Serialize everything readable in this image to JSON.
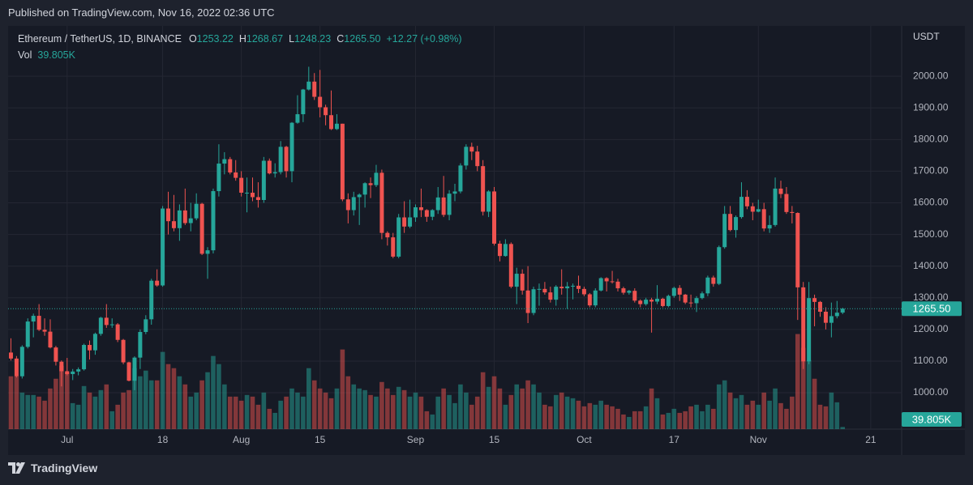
{
  "published": "Published on TradingView.com, Nov 16, 2022 02:36 UTC",
  "brand": "TradingView",
  "chart_data": {
    "type": "candlestick",
    "symbol": "Ethereum / TetherUS, 1D, BINANCE",
    "legend_values": [
      {
        "label": "O",
        "value": "1253.22"
      },
      {
        "label": "H",
        "value": "1268.67"
      },
      {
        "label": "L",
        "value": "1248.23"
      },
      {
        "label": "C",
        "value": "1265.50"
      }
    ],
    "change": "+12.27 (+0.98%)",
    "volume_title": "Vol",
    "volume_label": "39.805K",
    "axis_unit": "USDT",
    "last_price_label": "1265.50",
    "up_color": "#26a69a",
    "down_color": "#ef5350",
    "grid": true,
    "ylim": [
      885,
      2159
    ],
    "yticks": [
      {
        "value": 1000,
        "label": "1000.00"
      },
      {
        "value": 1100,
        "label": "1100.00"
      },
      {
        "value": 1200,
        "label": "1200.00"
      },
      {
        "value": 1300,
        "label": "1300.00"
      },
      {
        "value": 1400,
        "label": "1400.00"
      },
      {
        "value": 1500,
        "label": "1500.00"
      },
      {
        "value": 1600,
        "label": "1600.00"
      },
      {
        "value": 1700,
        "label": "1700.00"
      },
      {
        "value": 1800,
        "label": "1800.00"
      },
      {
        "value": 1900,
        "label": "1900.00"
      },
      {
        "value": 2000,
        "label": "2000.00"
      }
    ],
    "xlim": [
      -0.5,
      158.5
    ],
    "xticks": [
      {
        "value": 10,
        "label": "Jul"
      },
      {
        "value": 27,
        "label": "18"
      },
      {
        "value": 41,
        "label": "Aug"
      },
      {
        "value": 55,
        "label": "15"
      },
      {
        "value": 72,
        "label": "Sep"
      },
      {
        "value": 86,
        "label": "15"
      },
      {
        "value": 102,
        "label": "Oct"
      },
      {
        "value": 118,
        "label": "17"
      },
      {
        "value": 133,
        "label": "Nov"
      },
      {
        "value": 153,
        "label": "21"
      }
    ],
    "volume_lim": [
      0,
      7440000
    ],
    "candles": {
      "open": [
        1127,
        1108,
        1052,
        1145,
        1225,
        1243,
        1199,
        1193,
        1143,
        1098,
        1068,
        1059,
        1067,
        1074,
        1151,
        1134,
        1186,
        1237,
        1214,
        1216,
        1167,
        1096,
        1038,
        1111,
        1192,
        1232,
        1354,
        1339,
        1582,
        1542,
        1520,
        1576,
        1536,
        1551,
        1597,
        1439,
        1450,
        1637,
        1724,
        1738,
        1696,
        1679,
        1632,
        1632,
        1618,
        1609,
        1733,
        1693,
        1697,
        1777,
        1700,
        1853,
        1880,
        1958,
        1983,
        1935,
        1902,
        1877,
        1833,
        1850,
        1611,
        1577,
        1618,
        1626,
        1662,
        1656,
        1695,
        1505,
        1491,
        1430,
        1554,
        1525,
        1554,
        1586,
        1577,
        1556,
        1577,
        1617,
        1562,
        1629,
        1636,
        1718,
        1777,
        1762,
        1716,
        1572,
        1636,
        1471,
        1432,
        1470,
        1335,
        1376,
        1323,
        1252,
        1327,
        1328,
        1317,
        1294,
        1335,
        1330,
        1336,
        1338,
        1328,
        1311,
        1276,
        1323,
        1362,
        1352,
        1351,
        1330,
        1316,
        1322,
        1291,
        1280,
        1294,
        1288,
        1297,
        1274,
        1306,
        1331,
        1310,
        1285,
        1283,
        1299,
        1314,
        1364,
        1344,
        1460,
        1565,
        1514,
        1555,
        1619,
        1589,
        1572,
        1580,
        1519,
        1530,
        1645,
        1628,
        1571,
        1568,
        1333,
        1099,
        1299,
        1287,
        1256,
        1221,
        1242,
        1253.22
      ],
      "high": [
        1172,
        1116,
        1150,
        1235,
        1250,
        1280,
        1235,
        1232,
        1148,
        1102,
        1110,
        1075,
        1080,
        1155,
        1165,
        1190,
        1240,
        1280,
        1235,
        1220,
        1170,
        1098,
        1115,
        1200,
        1245,
        1360,
        1390,
        1590,
        1635,
        1625,
        1595,
        1645,
        1600,
        1630,
        1600,
        1460,
        1645,
        1785,
        1760,
        1745,
        1735,
        1700,
        1680,
        1680,
        1665,
        1745,
        1740,
        1725,
        1795,
        1780,
        1855,
        1940,
        1960,
        2030,
        2010,
        2020,
        1910,
        1955,
        1880,
        1850,
        1630,
        1635,
        1630,
        1665,
        1680,
        1720,
        1705,
        1510,
        1505,
        1565,
        1605,
        1610,
        1595,
        1645,
        1580,
        1580,
        1650,
        1685,
        1640,
        1660,
        1725,
        1785,
        1790,
        1780,
        1735,
        1640,
        1650,
        1480,
        1485,
        1475,
        1395,
        1390,
        1400,
        1335,
        1345,
        1350,
        1335,
        1340,
        1390,
        1350,
        1345,
        1370,
        1335,
        1315,
        1330,
        1365,
        1365,
        1385,
        1360,
        1335,
        1325,
        1330,
        1295,
        1300,
        1300,
        1340,
        1300,
        1310,
        1335,
        1340,
        1312,
        1310,
        1305,
        1320,
        1370,
        1370,
        1465,
        1590,
        1590,
        1560,
        1665,
        1640,
        1600,
        1610,
        1600,
        1560,
        1680,
        1670,
        1650,
        1590,
        1570,
        1350,
        1350,
        1310,
        1290,
        1270,
        1285,
        1290,
        1268.67
      ],
      "low": [
        1102,
        1048,
        1045,
        1140,
        1175,
        1195,
        1180,
        1140,
        1086,
        1020,
        1055,
        1040,
        1055,
        1070,
        1105,
        1120,
        1180,
        1205,
        1205,
        1160,
        1090,
        1036,
        1008,
        1075,
        1185,
        1215,
        1335,
        1335,
        1500,
        1510,
        1480,
        1530,
        1510,
        1545,
        1435,
        1360,
        1440,
        1620,
        1690,
        1690,
        1670,
        1620,
        1570,
        1605,
        1585,
        1600,
        1690,
        1680,
        1690,
        1680,
        1665,
        1850,
        1855,
        1955,
        1925,
        1870,
        1845,
        1830,
        1830,
        1605,
        1535,
        1560,
        1530,
        1585,
        1615,
        1650,
        1485,
        1465,
        1425,
        1425,
        1505,
        1520,
        1540,
        1555,
        1540,
        1545,
        1565,
        1555,
        1545,
        1605,
        1630,
        1705,
        1735,
        1700,
        1560,
        1555,
        1465,
        1415,
        1430,
        1330,
        1280,
        1310,
        1220,
        1245,
        1275,
        1310,
        1285,
        1275,
        1310,
        1265,
        1295,
        1315,
        1305,
        1270,
        1270,
        1320,
        1320,
        1345,
        1320,
        1310,
        1310,
        1285,
        1270,
        1275,
        1190,
        1280,
        1270,
        1270,
        1300,
        1290,
        1280,
        1270,
        1255,
        1295,
        1305,
        1335,
        1340,
        1455,
        1510,
        1490,
        1550,
        1580,
        1545,
        1570,
        1510,
        1505,
        1525,
        1615,
        1565,
        1535,
        1230,
        1075,
        1090,
        1210,
        1240,
        1200,
        1175,
        1235,
        1248.23
      ],
      "close": [
        1108,
        1052,
        1145,
        1225,
        1243,
        1199,
        1193,
        1143,
        1098,
        1068,
        1059,
        1067,
        1074,
        1151,
        1134,
        1186,
        1237,
        1214,
        1216,
        1167,
        1096,
        1038,
        1111,
        1192,
        1232,
        1354,
        1339,
        1582,
        1542,
        1520,
        1576,
        1536,
        1551,
        1597,
        1439,
        1450,
        1637,
        1724,
        1738,
        1696,
        1679,
        1632,
        1632,
        1618,
        1609,
        1733,
        1693,
        1697,
        1777,
        1700,
        1853,
        1880,
        1958,
        1983,
        1935,
        1902,
        1877,
        1833,
        1850,
        1611,
        1577,
        1618,
        1626,
        1662,
        1656,
        1695,
        1505,
        1491,
        1430,
        1554,
        1525,
        1554,
        1586,
        1577,
        1556,
        1577,
        1617,
        1562,
        1629,
        1636,
        1718,
        1777,
        1762,
        1716,
        1572,
        1636,
        1471,
        1432,
        1470,
        1335,
        1376,
        1323,
        1252,
        1327,
        1328,
        1317,
        1294,
        1335,
        1330,
        1336,
        1338,
        1328,
        1311,
        1276,
        1323,
        1362,
        1352,
        1351,
        1330,
        1316,
        1322,
        1291,
        1280,
        1294,
        1288,
        1297,
        1274,
        1306,
        1331,
        1310,
        1285,
        1283,
        1299,
        1314,
        1364,
        1344,
        1460,
        1565,
        1514,
        1555,
        1619,
        1589,
        1572,
        1580,
        1519,
        1530,
        1645,
        1628,
        1571,
        1568,
        1333,
        1099,
        1299,
        1287,
        1256,
        1221,
        1242,
        1253,
        1265.5
      ],
      "volume": [
        975000,
        975000,
        675000,
        630000,
        630000,
        600000,
        525000,
        750000,
        930000,
        1170000,
        1050000,
        480000,
        450000,
        795000,
        675000,
        600000,
        720000,
        825000,
        330000,
        450000,
        675000,
        720000,
        1125000,
        975000,
        1080000,
        900000,
        900000,
        1425000,
        1200000,
        1125000,
        975000,
        825000,
        600000,
        675000,
        900000,
        1050000,
        1350000,
        1200000,
        825000,
        600000,
        600000,
        525000,
        630000,
        600000,
        450000,
        675000,
        375000,
        300000,
        525000,
        600000,
        750000,
        675000,
        600000,
        1125000,
        900000,
        750000,
        675000,
        570000,
        750000,
        1470000,
        975000,
        825000,
        750000,
        720000,
        630000,
        600000,
        870000,
        750000,
        630000,
        780000,
        720000,
        600000,
        675000,
        600000,
        330000,
        270000,
        600000,
        750000,
        630000,
        480000,
        825000,
        675000,
        450000,
        600000,
        1050000,
        780000,
        975000,
        750000,
        450000,
        630000,
        825000,
        750000,
        900000,
        825000,
        675000,
        450000,
        420000,
        630000,
        675000,
        600000,
        570000,
        525000,
        420000,
        480000,
        450000,
        525000,
        450000,
        420000,
        375000,
        270000,
        225000,
        330000,
        330000,
        420000,
        750000,
        570000,
        270000,
        300000,
        375000,
        300000,
        330000,
        420000,
        450000,
        330000,
        450000,
        375000,
        825000,
        900000,
        675000,
        570000,
        630000,
        450000,
        525000,
        450000,
        675000,
        525000,
        750000,
        480000,
        375000,
        600000,
        1755000,
        1500000,
        1275000,
        930000,
        450000,
        420000,
        675000,
        495000,
        39805
      ]
    }
  }
}
